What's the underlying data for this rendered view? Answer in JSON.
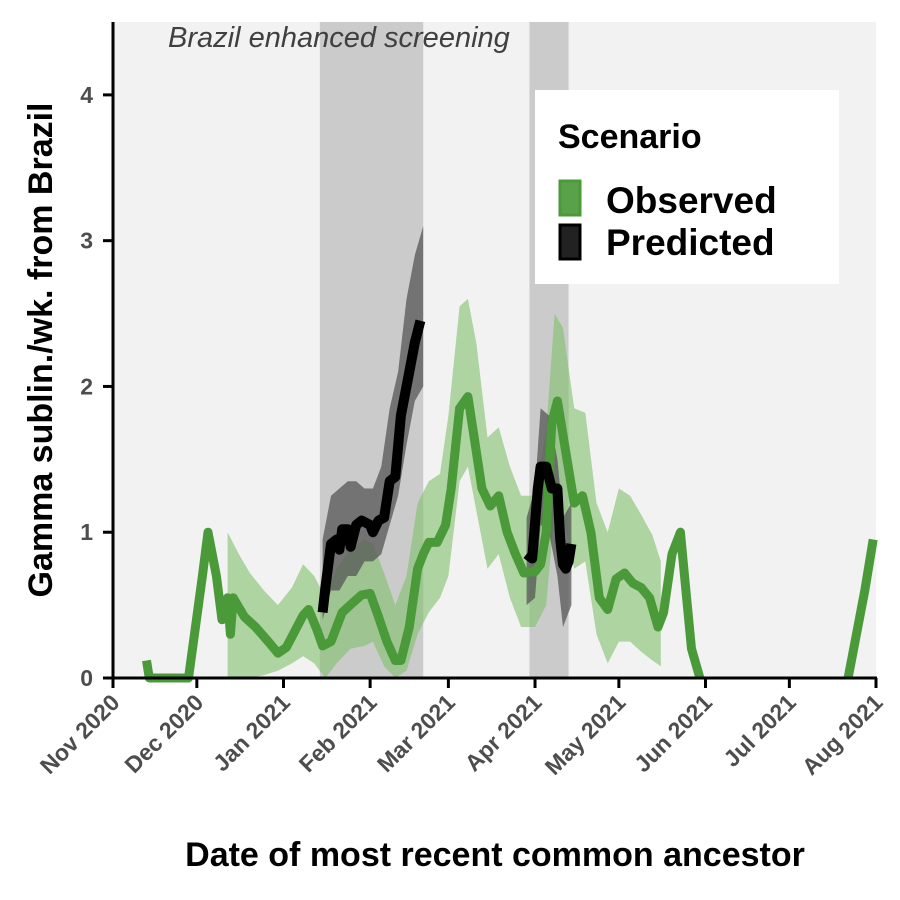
{
  "chart_data": {
    "type": "line",
    "xlabel": "Date of most recent common ancestor",
    "ylabel": "Gamma sublin./wk. from Brazil",
    "x_range": [
      "2020-11-01",
      "2021-08-01"
    ],
    "ylim": [
      0,
      4.5
    ],
    "y_ticks": [
      0,
      1,
      2,
      3,
      4
    ],
    "x_ticks": [
      {
        "date": "2020-11-01",
        "label": "Nov 2020"
      },
      {
        "date": "2020-12-01",
        "label": "Dec 2020"
      },
      {
        "date": "2021-01-01",
        "label": "Jan 2021"
      },
      {
        "date": "2021-02-01",
        "label": "Feb 2021"
      },
      {
        "date": "2021-03-01",
        "label": "Mar 2021"
      },
      {
        "date": "2021-04-01",
        "label": "Apr 2021"
      },
      {
        "date": "2021-05-01",
        "label": "May 2021"
      },
      {
        "date": "2021-06-01",
        "label": "Jun 2021"
      },
      {
        "date": "2021-07-01",
        "label": "Jul 2021"
      },
      {
        "date": "2021-08-01",
        "label": "Aug 2021"
      }
    ],
    "grid": false,
    "background_color": "#f2f2f2",
    "annotation": "Brazil enhanced screening",
    "shaded_periods": [
      {
        "start": "2021-01-14",
        "end": "2021-02-20"
      },
      {
        "start": "2021-03-30",
        "end": "2021-04-13"
      }
    ],
    "legend": {
      "title": "Scenario",
      "position": "top-right"
    },
    "series": [
      {
        "name": "Observed",
        "color": "#4a9a3a",
        "band_color": "#7fbf6a",
        "points": [
          [
            "2020-11-13",
            0.12
          ],
          [
            "2020-11-14",
            0.0
          ],
          [
            "2020-11-28",
            0.0
          ],
          [
            "2020-12-03",
            0.7
          ],
          [
            "2020-12-05",
            1.0
          ],
          [
            "2020-12-08",
            0.7
          ],
          [
            "2020-12-10",
            0.4
          ],
          [
            "2020-12-12",
            0.55
          ],
          [
            "2020-12-13",
            0.3
          ],
          [
            "2020-12-14",
            0.55
          ],
          [
            "2020-12-18",
            0.42
          ],
          [
            "2020-12-22",
            0.35
          ],
          [
            "2020-12-27",
            0.24
          ],
          [
            "2020-12-30",
            0.17
          ],
          [
            "2021-01-02",
            0.21
          ],
          [
            "2021-01-05",
            0.32
          ],
          [
            "2021-01-08",
            0.43
          ],
          [
            "2021-01-10",
            0.47
          ],
          [
            "2021-01-13",
            0.33
          ],
          [
            "2021-01-15",
            0.22
          ],
          [
            "2021-01-18",
            0.25
          ],
          [
            "2021-01-22",
            0.45
          ],
          [
            "2021-01-26",
            0.52
          ],
          [
            "2021-01-29",
            0.57
          ],
          [
            "2021-02-01",
            0.58
          ],
          [
            "2021-02-04",
            0.42
          ],
          [
            "2021-02-07",
            0.25
          ],
          [
            "2021-02-10",
            0.12
          ],
          [
            "2021-02-12",
            0.12
          ],
          [
            "2021-02-15",
            0.35
          ],
          [
            "2021-02-18",
            0.75
          ],
          [
            "2021-02-20",
            0.85
          ],
          [
            "2021-02-22",
            0.93
          ],
          [
            "2021-02-25",
            0.93
          ],
          [
            "2021-02-28",
            1.05
          ],
          [
            "2021-03-02",
            1.3
          ],
          [
            "2021-03-05",
            1.85
          ],
          [
            "2021-03-08",
            1.93
          ],
          [
            "2021-03-10",
            1.68
          ],
          [
            "2021-03-13",
            1.3
          ],
          [
            "2021-03-16",
            1.18
          ],
          [
            "2021-03-19",
            1.25
          ],
          [
            "2021-03-22",
            1.0
          ],
          [
            "2021-03-25",
            0.85
          ],
          [
            "2021-03-28",
            0.72
          ],
          [
            "2021-04-01",
            0.73
          ],
          [
            "2021-04-03",
            0.78
          ],
          [
            "2021-04-05",
            1.0
          ],
          [
            "2021-04-07",
            1.75
          ],
          [
            "2021-04-09",
            1.9
          ],
          [
            "2021-04-12",
            1.55
          ],
          [
            "2021-04-15",
            1.2
          ],
          [
            "2021-04-18",
            1.25
          ],
          [
            "2021-04-21",
            1.0
          ],
          [
            "2021-04-24",
            0.55
          ],
          [
            "2021-04-27",
            0.47
          ],
          [
            "2021-04-30",
            0.68
          ],
          [
            "2021-05-03",
            0.72
          ],
          [
            "2021-05-06",
            0.65
          ],
          [
            "2021-05-09",
            0.62
          ],
          [
            "2021-05-12",
            0.55
          ],
          [
            "2021-05-15",
            0.35
          ],
          [
            "2021-05-17",
            0.45
          ],
          [
            "2021-05-20",
            0.85
          ],
          [
            "2021-05-23",
            1.0
          ],
          [
            "2021-05-25",
            0.6
          ],
          [
            "2021-05-27",
            0.2
          ],
          [
            "2021-05-30",
            0.0
          ],
          [
            "2021-07-22",
            0.0
          ],
          [
            "2021-07-28",
            0.6
          ],
          [
            "2021-07-31",
            0.95
          ]
        ],
        "band": [
          [
            "2020-12-12",
            0.0,
            1.0
          ],
          [
            "2020-12-16",
            0.0,
            0.85
          ],
          [
            "2020-12-20",
            0.0,
            0.72
          ],
          [
            "2020-12-25",
            0.02,
            0.6
          ],
          [
            "2020-12-30",
            0.05,
            0.5
          ],
          [
            "2021-01-04",
            0.1,
            0.62
          ],
          [
            "2021-01-08",
            0.15,
            0.78
          ],
          [
            "2021-01-12",
            0.1,
            0.7
          ],
          [
            "2021-01-16",
            0.0,
            0.55
          ],
          [
            "2021-01-20",
            0.1,
            0.75
          ],
          [
            "2021-01-25",
            0.2,
            0.88
          ],
          [
            "2021-01-30",
            0.22,
            0.95
          ],
          [
            "2021-02-02",
            0.25,
            0.92
          ],
          [
            "2021-02-06",
            0.08,
            0.72
          ],
          [
            "2021-02-10",
            0.0,
            0.5
          ],
          [
            "2021-02-14",
            0.05,
            0.7
          ],
          [
            "2021-02-18",
            0.3,
            1.2
          ],
          [
            "2021-02-22",
            0.45,
            1.35
          ],
          [
            "2021-02-26",
            0.55,
            1.4
          ],
          [
            "2021-03-01",
            0.7,
            1.8
          ],
          [
            "2021-03-05",
            1.35,
            2.55
          ],
          [
            "2021-03-08",
            1.45,
            2.6
          ],
          [
            "2021-03-11",
            1.15,
            2.3
          ],
          [
            "2021-03-15",
            0.75,
            1.65
          ],
          [
            "2021-03-19",
            0.85,
            1.72
          ],
          [
            "2021-03-23",
            0.55,
            1.45
          ],
          [
            "2021-03-27",
            0.35,
            1.25
          ],
          [
            "2021-04-01",
            0.35,
            1.25
          ],
          [
            "2021-04-05",
            0.5,
            1.7
          ],
          [
            "2021-04-08",
            1.15,
            2.5
          ],
          [
            "2021-04-11",
            1.1,
            2.4
          ],
          [
            "2021-04-15",
            0.75,
            1.85
          ],
          [
            "2021-04-19",
            0.8,
            1.82
          ],
          [
            "2021-04-23",
            0.3,
            1.2
          ],
          [
            "2021-04-27",
            0.1,
            1.0
          ],
          [
            "2021-05-01",
            0.25,
            1.3
          ],
          [
            "2021-05-05",
            0.25,
            1.25
          ],
          [
            "2021-05-09",
            0.18,
            1.12
          ],
          [
            "2021-05-13",
            0.12,
            0.98
          ],
          [
            "2021-05-16",
            0.08,
            0.8
          ]
        ]
      },
      {
        "name": "Predicted",
        "color": "#000000",
        "band_color": "#555555",
        "points": [
          [
            "2021-01-15",
            0.45
          ],
          [
            "2021-01-16",
            0.62
          ],
          [
            "2021-01-18",
            0.92
          ],
          [
            "2021-01-20",
            0.95
          ],
          [
            "2021-01-21",
            0.88
          ],
          [
            "2021-01-22",
            1.02
          ],
          [
            "2021-01-24",
            1.02
          ],
          [
            "2021-01-25",
            0.9
          ],
          [
            "2021-01-27",
            1.05
          ],
          [
            "2021-01-29",
            1.08
          ],
          [
            "2021-02-01",
            1.05
          ],
          [
            "2021-02-02",
            1.0
          ],
          [
            "2021-02-04",
            1.08
          ],
          [
            "2021-02-06",
            1.1
          ],
          [
            "2021-02-08",
            1.35
          ],
          [
            "2021-02-10",
            1.38
          ],
          [
            "2021-02-12",
            1.8
          ],
          [
            "2021-02-15",
            2.1
          ],
          [
            "2021-02-17",
            2.3
          ],
          [
            "2021-02-19",
            2.45
          ],
          [
            "2021-03-29",
            0.85
          ],
          [
            "2021-03-31",
            0.82
          ],
          [
            "2021-04-02",
            1.3
          ],
          [
            "2021-04-03",
            1.45
          ],
          [
            "2021-04-05",
            1.45
          ],
          [
            "2021-04-07",
            1.3
          ],
          [
            "2021-04-09",
            1.3
          ],
          [
            "2021-04-10",
            0.95
          ],
          [
            "2021-04-11",
            0.78
          ],
          [
            "2021-04-12",
            0.75
          ],
          [
            "2021-04-13",
            0.8
          ],
          [
            "2021-04-14",
            0.92
          ]
        ],
        "band": [
          [
            "2021-01-15",
            0.4,
            0.95
          ],
          [
            "2021-01-18",
            0.6,
            1.25
          ],
          [
            "2021-01-21",
            0.6,
            1.3
          ],
          [
            "2021-01-24",
            0.7,
            1.35
          ],
          [
            "2021-01-27",
            0.7,
            1.35
          ],
          [
            "2021-01-30",
            0.8,
            1.3
          ],
          [
            "2021-02-02",
            0.8,
            1.3
          ],
          [
            "2021-02-05",
            0.85,
            1.45
          ],
          [
            "2021-02-08",
            1.05,
            1.85
          ],
          [
            "2021-02-11",
            1.25,
            2.1
          ],
          [
            "2021-02-14",
            1.6,
            2.6
          ],
          [
            "2021-02-17",
            1.9,
            2.9
          ],
          [
            "2021-02-20",
            2.0,
            3.1
          ],
          [
            "2021-03-29",
            0.5,
            1.1
          ],
          [
            "2021-04-01",
            0.55,
            1.3
          ],
          [
            "2021-04-03",
            1.05,
            1.85
          ],
          [
            "2021-04-06",
            1.0,
            1.8
          ],
          [
            "2021-04-09",
            0.7,
            1.5
          ],
          [
            "2021-04-11",
            0.35,
            1.1
          ],
          [
            "2021-04-14",
            0.5,
            1.2
          ]
        ]
      }
    ]
  }
}
